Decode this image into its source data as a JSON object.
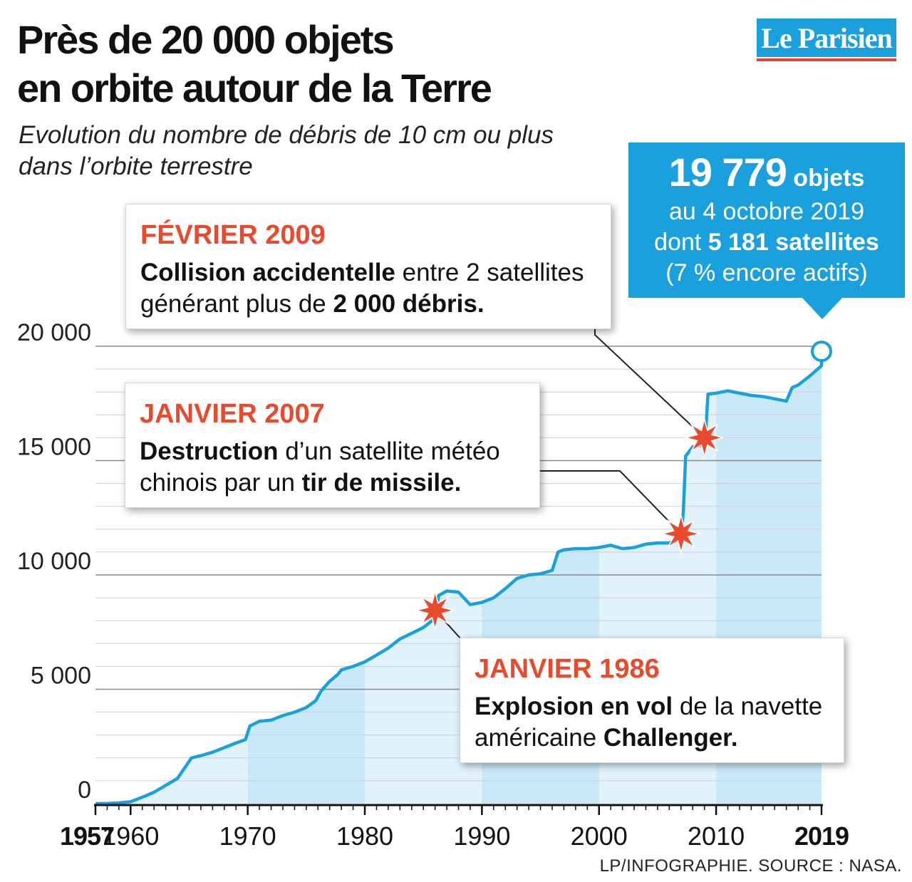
{
  "header": {
    "title_lines": [
      "Près de 20 000 objets",
      "en orbite autour de la Terre"
    ],
    "subtitle_lines": [
      "Evolution du nombre de débris de 10 cm ou plus",
      "dans l’orbite terrestre"
    ]
  },
  "logo": {
    "text": "Le Parisien",
    "bg_color": "#1aa0dc",
    "underline_color": "#e5413b"
  },
  "summary": {
    "count": "19 779",
    "count_unit": "objets",
    "date_line": "au 4 octobre 2019",
    "sat_prefix": "dont",
    "sat_value": "5 181 satellites",
    "active_line": "(7 % encore actifs)"
  },
  "callouts": {
    "feb2009": {
      "title": "FÉVRIER 2009",
      "b1": "Collision accidentelle",
      "t1": " entre 2 satellites",
      "t2": "générant plus de ",
      "b2": "2 000 débris."
    },
    "jan2007": {
      "title": "JANVIER 2007",
      "b1": "Destruction",
      "t1": " d’un satellite météo",
      "t2": "chinois par un ",
      "b2": "tir de missile."
    },
    "jan1986": {
      "title": "JANVIER 1986",
      "b1": "Explosion en vol",
      "t1": " de la navette",
      "t2": "américaine ",
      "b2": "Challenger."
    }
  },
  "footer": {
    "credit": "LP/INFOGRAPHIE.  SOURCE : NASA."
  },
  "chart_data": {
    "type": "area",
    "title": "Près de 20 000 objets en orbite autour de la Terre",
    "subtitle": "Evolution du nombre de débris de 10 cm ou plus dans l’orbite terrestre",
    "xlabel": "",
    "ylabel": "",
    "xlim": [
      1957,
      2019
    ],
    "ylim": [
      0,
      20000
    ],
    "x_ticks": [
      1957,
      1960,
      1970,
      1980,
      1990,
      2000,
      2010,
      2019
    ],
    "x_tick_labels": [
      "1957",
      "1960",
      "1970",
      "1980",
      "1990",
      "2000",
      "2010",
      "2019"
    ],
    "y_ticks": [
      0,
      5000,
      10000,
      15000,
      20000
    ],
    "y_tick_labels": [
      "0",
      "5 000",
      "10 000",
      "15 000",
      "20 000"
    ],
    "grid": true,
    "line_color": "#1aa0dc",
    "fill_color_light": "#e1f2fb",
    "fill_color_dark": "#cae9f8",
    "marker_color": "#e84a2e",
    "series": [
      {
        "x": [
          1957,
          1958,
          1959,
          1960,
          1961.2,
          1962,
          1963,
          1964,
          1964.8,
          1965.2,
          1966,
          1967,
          1968,
          1969,
          1969.8,
          1970.2,
          1971,
          1972,
          1973,
          1974,
          1975,
          1975.8,
          1976.3,
          1977,
          1977.7,
          1978,
          1979,
          1980,
          1981,
          1982,
          1983,
          1984,
          1985,
          1986,
          1986.3,
          1987,
          1988,
          1989,
          1990,
          1991,
          1992,
          1993,
          1994,
          1995,
          1996,
          1996.5,
          1997,
          1998,
          1999,
          2000,
          2001,
          2002,
          2003,
          2004,
          2005,
          2006,
          2007,
          2007.2,
          2007.4,
          2008,
          2009,
          2009.1,
          2009.3,
          2010,
          2011,
          2012,
          2013,
          2014,
          2015,
          2016,
          2016.5,
          2017,
          2018,
          2019
        ],
        "values": [
          0,
          10,
          30,
          80,
          320,
          500,
          800,
          1100,
          1700,
          2000,
          2100,
          2250,
          2450,
          2650,
          2800,
          3400,
          3600,
          3650,
          3850,
          4000,
          4200,
          4500,
          4950,
          5350,
          5650,
          5850,
          6000,
          6200,
          6500,
          6800,
          7200,
          7450,
          7700,
          8100,
          9100,
          9300,
          9250,
          8700,
          8800,
          9000,
          9400,
          9850,
          10000,
          10050,
          10200,
          11000,
          11100,
          11150,
          11150,
          11200,
          11300,
          11150,
          11200,
          11350,
          11400,
          11400,
          11650,
          12800,
          15200,
          15600,
          15700,
          16100,
          17900,
          17950,
          18050,
          17950,
          17850,
          17800,
          17700,
          17600,
          18200,
          18300,
          18700,
          19150
        ]
      }
    ],
    "markers": [
      {
        "x": 1986,
        "y": 8450,
        "label": "JANVIER 1986"
      },
      {
        "x": 2007,
        "y": 11800,
        "label": "JANVIER 2007"
      },
      {
        "x": 2009,
        "y": 16000,
        "label": "FÉVRIER 2009"
      }
    ],
    "end_point": {
      "x": 2019,
      "y": 19779
    }
  }
}
